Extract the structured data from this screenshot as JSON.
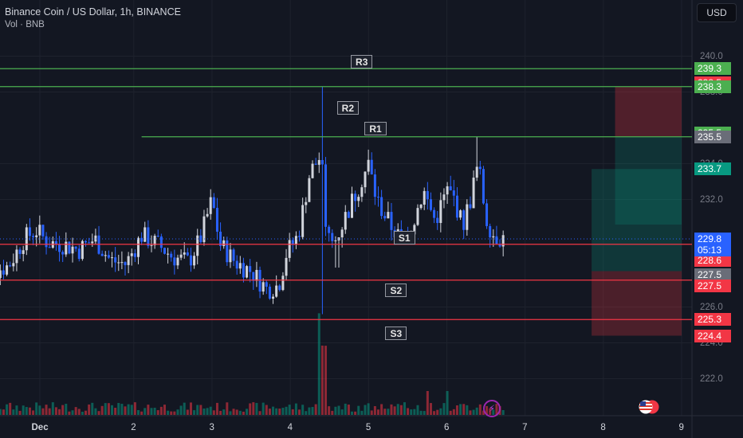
{
  "header": {
    "symbol_line": "Binance Coin / US Dollar, 1h, BINANCE",
    "volume_line": "Vol · BNB"
  },
  "currency_button": "USD",
  "levels": {
    "R3": {
      "label": "R3",
      "price": 239.3
    },
    "R2": {
      "label": "R2",
      "price": 238.3
    },
    "R1": {
      "label": "R1",
      "price": 235.5
    },
    "S1": {
      "label": "S1",
      "price": 229.5
    },
    "S2": {
      "label": "S2",
      "price": 227.5
    },
    "S3": {
      "label": "S3",
      "price": 225.3
    }
  },
  "price_tags": [
    {
      "text": "239.3",
      "price": 239.3,
      "color": "#4caf50"
    },
    {
      "text": "238.5",
      "price": 238.5,
      "color": "#f23645"
    },
    {
      "text": "238.3",
      "price": 238.3,
      "color": "#4caf50"
    },
    {
      "text": "235.5",
      "price": 235.7,
      "color": "#4caf50"
    },
    {
      "text": "235.5",
      "price": 235.5,
      "color": "#6a6d78"
    },
    {
      "text": "233.7",
      "price": 233.7,
      "color": "#089981"
    },
    {
      "text": "229.5",
      "price": 229.5,
      "color": "#4caf50"
    },
    {
      "text": "228.6",
      "price": 228.6,
      "color": "#f23645"
    },
    {
      "text": "227.5",
      "price": 227.8,
      "color": "#6a6d78"
    },
    {
      "text": "227.5",
      "price": 227.2,
      "color": "#f23645"
    },
    {
      "text": "225.3",
      "price": 225.3,
      "color": "#f23645"
    },
    {
      "text": "224.4",
      "price": 224.4,
      "color": "#f23645"
    }
  ],
  "last_price": {
    "price": 229.8,
    "text": "229.8",
    "countdown": "05:13",
    "color": "#2962ff"
  },
  "y_axis": {
    "ticks": [
      240.0,
      238.0,
      234.0,
      232.0,
      226.0,
      224.0,
      222.0
    ],
    "min": 221.0,
    "max": 241.0
  },
  "x_axis": {
    "labels": [
      {
        "text": "Dec",
        "t": 0.8
      },
      {
        "text": "2",
        "t": 2.0
      },
      {
        "text": "3",
        "t": 3.0
      },
      {
        "text": "4",
        "t": 4.0
      },
      {
        "text": "5",
        "t": 5.0
      },
      {
        "text": "6",
        "t": 6.0
      },
      {
        "text": "7",
        "t": 7.0
      },
      {
        "text": "8",
        "t": 8.0
      },
      {
        "text": "9",
        "t": 9.0
      }
    ]
  },
  "position_boxes": {
    "short": {
      "t_start": 8.15,
      "t_end": 9.0,
      "entry": 235.5,
      "stop": 238.3,
      "target": 230.6
    },
    "long": {
      "t_start": 7.85,
      "t_end": 9.0,
      "entry": 228.0,
      "stop": 224.4,
      "target": 233.7
    }
  },
  "chart_data": {
    "type": "candlestick",
    "title": "Binance Coin / US Dollar, 1h, BINANCE",
    "ylim": [
      221.0,
      241.0
    ],
    "candles_anchor_path": [
      [
        0.0,
        227.5
      ],
      [
        0.2,
        228.0
      ],
      [
        0.4,
        228.3
      ],
      [
        0.6,
        229.8
      ],
      [
        0.75,
        230.3
      ],
      [
        0.9,
        229.6
      ],
      [
        1.1,
        229.5
      ],
      [
        1.3,
        229.2
      ],
      [
        1.5,
        229.8
      ],
      [
        1.7,
        228.6
      ],
      [
        1.9,
        228.4
      ],
      [
        2.1,
        230.0
      ],
      [
        2.3,
        229.5
      ],
      [
        2.5,
        228.8
      ],
      [
        2.7,
        228.5
      ],
      [
        2.85,
        229.8
      ],
      [
        3.0,
        232.0
      ],
      [
        3.1,
        229.5
      ],
      [
        3.3,
        228.5
      ],
      [
        3.5,
        228.0
      ],
      [
        3.7,
        227.0
      ],
      [
        3.85,
        227.2
      ],
      [
        3.95,
        229.0
      ],
      [
        4.1,
        230.0
      ],
      [
        4.25,
        233.5
      ],
      [
        4.4,
        234.5
      ],
      [
        4.45,
        230.0
      ],
      [
        4.55,
        229.5
      ],
      [
        4.7,
        231.0
      ],
      [
        4.85,
        232.5
      ],
      [
        5.0,
        234.0
      ],
      [
        5.1,
        232.0
      ],
      [
        5.25,
        230.8
      ],
      [
        5.4,
        229.8
      ],
      [
        5.55,
        230.5
      ],
      [
        5.7,
        232.5
      ],
      [
        5.85,
        230.8
      ],
      [
        6.0,
        232.5
      ],
      [
        6.1,
        232.0
      ],
      [
        6.2,
        230.5
      ],
      [
        6.3,
        232.0
      ],
      [
        6.4,
        234.0
      ],
      [
        6.5,
        231.0
      ],
      [
        6.6,
        230.0
      ],
      [
        6.75,
        229.8
      ]
    ],
    "volume_scale": "relative"
  }
}
